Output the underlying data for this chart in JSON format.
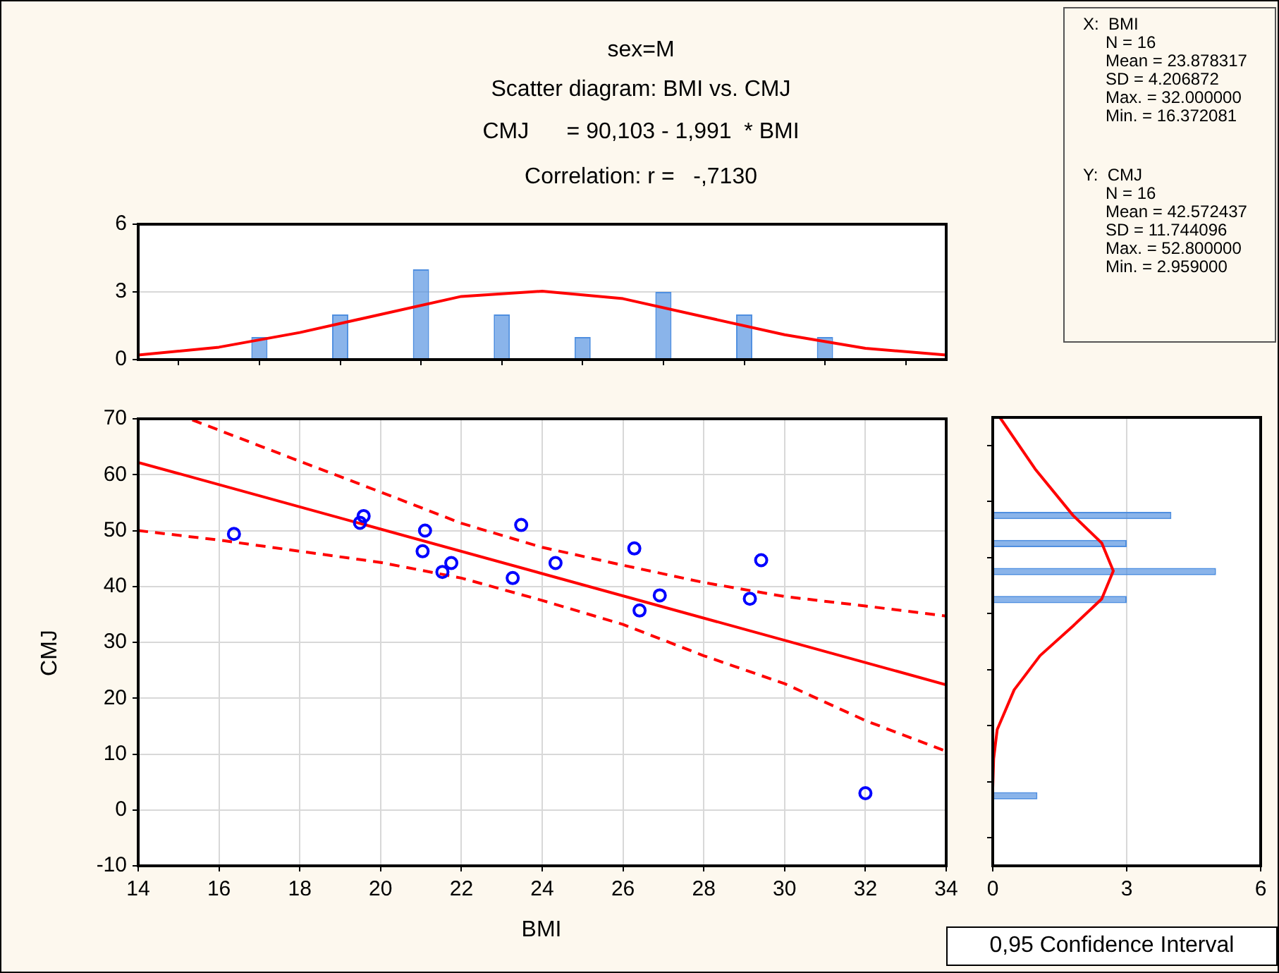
{
  "chart_data": [
    {
      "type": "histogram",
      "title": "sex=M",
      "subtitle": "Scatter diagram: BMI vs. CMJ",
      "annotations": [
        "CMJ      = 90,103 - 1,991  * BMI",
        "Correlation: r =   -,7130"
      ],
      "xlim": [
        14,
        34
      ],
      "xticks": [
        14,
        16,
        18,
        20,
        22,
        24,
        26,
        28,
        30,
        32,
        34
      ],
      "ylim": [
        0,
        6
      ],
      "yticks": [
        0,
        3,
        6
      ],
      "grid": "y",
      "tick_labels": "y",
      "series": [
        {
          "type": "histogram",
          "color": "#4f8fe0",
          "bins": [
            14,
            16,
            18,
            20,
            22,
            24,
            26,
            28,
            30,
            32
          ],
          "values": [
            0,
            1,
            2,
            4,
            2,
            1,
            3,
            2,
            1
          ]
        },
        {
          "type": "line",
          "color": "#ff0000",
          "marker": "none",
          "line_style": "solid",
          "x": [
            14,
            16,
            18,
            20,
            22,
            24,
            26,
            28,
            30,
            32,
            34
          ],
          "values": [
            0.2,
            0.55,
            1.2,
            2.0,
            2.8,
            3.03,
            2.7,
            1.9,
            1.1,
            0.5,
            0.2
          ]
        }
      ]
    },
    {
      "type": "scatter",
      "xlabel": "BMI",
      "ylabel": "CMJ",
      "xlim": [
        14,
        34
      ],
      "xticks": [
        14,
        16,
        18,
        20,
        22,
        24,
        26,
        28,
        30,
        32,
        34
      ],
      "ylim": [
        -10,
        70
      ],
      "yticks": [
        -10,
        0,
        10,
        20,
        30,
        40,
        50,
        60,
        70
      ],
      "grid": true,
      "annotations": [
        "X:  BMI\nN = 16\nMean = 23.878317\nSD = 4.206872\nMax. = 32.000000\nMin. = 16.372081",
        "Y:  CMJ\nN = 16\nMean = 42.572437\nSD = 11.744096\nMax. = 52.800000\nMin. = 2.959000",
        "0,95 Confidence Interval"
      ],
      "series": [
        {
          "type": "scatter",
          "color": "#0000ff",
          "marker": "circle",
          "x": [
            16.37,
            19.49,
            19.58,
            21.1,
            21.04,
            21.53,
            21.75,
            23.27,
            23.48,
            24.33,
            26.28,
            26.41,
            26.91,
            29.14,
            29.42,
            32.0
          ],
          "values": [
            49.4,
            51.4,
            52.6,
            50.0,
            46.3,
            42.6,
            44.2,
            41.5,
            51.0,
            44.2,
            46.8,
            35.7,
            38.4,
            37.8,
            44.7,
            3.0
          ]
        },
        {
          "type": "line",
          "color": "#ff0000",
          "marker": "none",
          "line_style": "solid",
          "x": [
            14,
            34
          ],
          "values": [
            62.2,
            22.4
          ]
        },
        {
          "type": "line",
          "color": "#ff0000",
          "marker": "none",
          "line_style": "dashed",
          "x": [
            15.34,
            18,
            20,
            22,
            24,
            26,
            28,
            30,
            32,
            34
          ],
          "values": [
            69.8,
            62.4,
            56.9,
            51.3,
            47.0,
            43.8,
            40.7,
            38.2,
            36.5,
            34.7
          ]
        },
        {
          "type": "line",
          "color": "#ff0000",
          "marker": "none",
          "line_style": "dashed",
          "x": [
            14,
            16,
            18,
            20,
            22,
            24,
            26,
            28,
            30,
            32,
            34
          ],
          "values": [
            50.0,
            48.3,
            46.3,
            44.3,
            41.5,
            37.5,
            33.2,
            27.6,
            22.6,
            16.0,
            10.5
          ]
        }
      ]
    },
    {
      "type": "histogram",
      "orientation": "horizontal",
      "xlim": [
        0,
        6
      ],
      "xticks": [
        0,
        3,
        6
      ],
      "ylim": [
        -10,
        70
      ],
      "yticks": [
        -10,
        0,
        10,
        20,
        30,
        40,
        50,
        60,
        70
      ],
      "grid": "x",
      "tick_labels": "x",
      "series": [
        {
          "type": "histogram",
          "color": "#4f8fe0",
          "bins": [
            -5,
            0,
            5,
            10,
            15,
            20,
            25,
            30,
            35,
            40,
            45,
            50,
            55
          ],
          "values": [
            0,
            1,
            0,
            0,
            0,
            0,
            0,
            0,
            3,
            5,
            3,
            4
          ]
        },
        {
          "type": "line",
          "color": "#ff0000",
          "marker": "none",
          "line_style": "solid",
          "x": [
            70,
            60.8,
            52.5,
            47.6,
            42.6,
            37.6,
            32.8,
            27.5,
            21.4,
            14.3,
            9.1,
            3.8
          ],
          "values": [
            0.16,
            0.95,
            1.8,
            2.44,
            2.7,
            2.44,
            1.8,
            1.06,
            0.48,
            0.1,
            0.02,
            0
          ]
        }
      ]
    }
  ]
}
